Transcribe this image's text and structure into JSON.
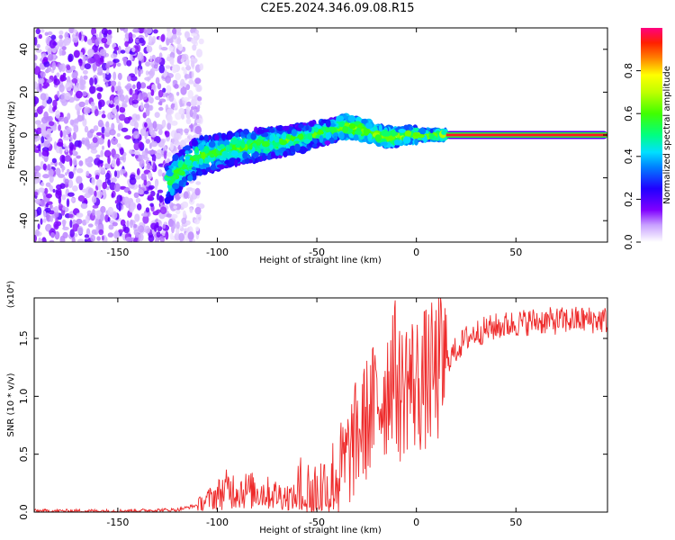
{
  "title": "C2E5.2024.346.09.08.R15",
  "colors": {
    "snr_line": "#ee2b2b",
    "frame": "#000000",
    "colormap": [
      "#ffffff",
      "#8000ff",
      "#0000ff",
      "#00c8ff",
      "#00ff80",
      "#80ff00",
      "#ffff00",
      "#ff8000",
      "#ff0000",
      "#ff0080"
    ]
  },
  "chart_data": [
    {
      "type": "heatmap",
      "title": "",
      "xlabel": "Height of straight line (km)",
      "ylabel": "Frequency (Hz)",
      "xlim": [
        -192,
        96
      ],
      "ylim": [
        -50,
        50
      ],
      "xticks": [
        "-150",
        "-100",
        "-50",
        "0",
        "50"
      ],
      "yticks": [
        "-40",
        "-20",
        "0",
        "20",
        "40"
      ],
      "colorbar": {
        "label": "Normalized spectral amplitude",
        "range": [
          0.0,
          1.0
        ],
        "ticks": [
          "0.0",
          "0.2",
          "0.4",
          "0.6",
          "0.8"
        ]
      },
      "features": [
        {
          "name": "noise region",
          "x_range": [
            -192,
            -120
          ],
          "y_range": [
            -50,
            50
          ],
          "amplitude": 0.15
        },
        {
          "name": "signal band",
          "x_range": [
            -125,
            15
          ],
          "centre_line": [
            [
              -125,
              -22
            ],
            [
              -110,
              -10
            ],
            [
              -90,
              -6
            ],
            [
              -60,
              -2
            ],
            [
              -35,
              4
            ],
            [
              -25,
              2
            ],
            [
              -15,
              -1
            ],
            [
              0,
              0
            ],
            [
              15,
              0
            ]
          ],
          "amplitude": 0.4
        },
        {
          "name": "carrier",
          "x_range": [
            15,
            96
          ],
          "y": 0,
          "amplitude": 0.95
        }
      ]
    },
    {
      "type": "line",
      "title": "",
      "xlabel": "Height of straight line (km)",
      "ylabel": "SNR (10 * v/v)",
      "y_multiplier_label": "(x10⁴)",
      "xlim": [
        -192,
        96
      ],
      "ylim": [
        0,
        1.85
      ],
      "xticks": [
        "-150",
        "-100",
        "-50",
        "0",
        "50"
      ],
      "yticks": [
        "0.0",
        "0.5",
        "1.0",
        "1.5"
      ],
      "series": [
        {
          "x": [
            -192,
            -150,
            -120,
            -110,
            -100,
            -95,
            -80,
            -70,
            -60,
            -50,
            -45,
            -40,
            -35,
            -30,
            -25,
            -20,
            -15,
            -12,
            -8,
            -5,
            0,
            5,
            10,
            15,
            20,
            25,
            30,
            40,
            50,
            60,
            70,
            80,
            90,
            96
          ],
          "y": [
            0.01,
            0.01,
            0.02,
            0.06,
            0.15,
            0.2,
            0.18,
            0.15,
            0.12,
            0.13,
            0.2,
            0.3,
            0.45,
            0.65,
            0.8,
            0.95,
            1.05,
            1.3,
            1.0,
            1.15,
            1.1,
            1.15,
            1.2,
            1.3,
            1.4,
            1.5,
            1.55,
            1.6,
            1.63,
            1.65,
            1.65,
            1.66,
            1.66,
            1.66
          ]
        }
      ]
    }
  ]
}
